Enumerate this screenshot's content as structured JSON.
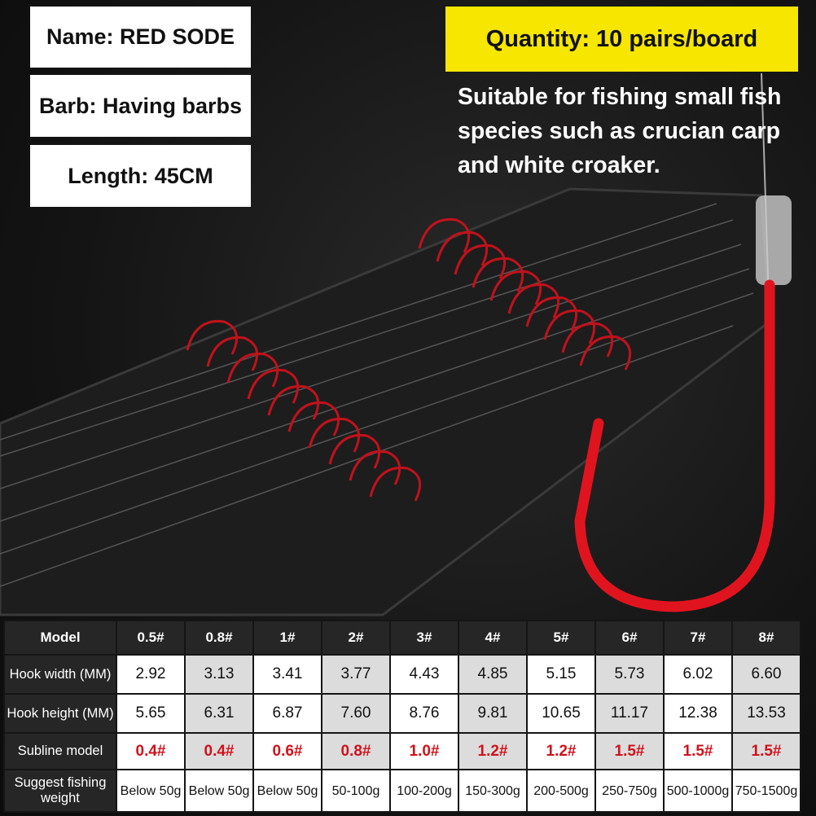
{
  "labels": {
    "name": "Name: RED SODE",
    "barb": "Barb: Having barbs",
    "length": "Length: 45CM"
  },
  "quantity": "Quantity: 10 pairs/board",
  "description": "Suitable for fishing small fish species such as crucian carp and white croaker.",
  "colors": {
    "quantity_bg": "#f6e600",
    "hook": "#d0121b",
    "background": "#141414"
  },
  "table": {
    "header": {
      "label": "Model",
      "models": [
        "0.5#",
        "0.8#",
        "1#",
        "2#",
        "3#",
        "4#",
        "5#",
        "6#",
        "7#",
        "8#"
      ]
    },
    "rows": [
      {
        "label": "Hook width (MM)",
        "values": [
          "2.92",
          "3.13",
          "3.41",
          "3.77",
          "4.43",
          "4.85",
          "5.15",
          "5.73",
          "6.02",
          "6.60"
        ]
      },
      {
        "label": "Hook height (MM)",
        "values": [
          "5.65",
          "6.31",
          "6.87",
          "7.60",
          "8.76",
          "9.81",
          "10.65",
          "11.17",
          "12.38",
          "13.53"
        ]
      },
      {
        "label": "Subline model",
        "values": [
          "0.4#",
          "0.4#",
          "0.6#",
          "0.8#",
          "1.0#",
          "1.2#",
          "1.2#",
          "1.5#",
          "1.5#",
          "1.5#"
        ]
      },
      {
        "label": "Suggest fishing weight",
        "values": [
          "Below 50g",
          "Below 50g",
          "Below 50g",
          "50-100g",
          "100-200g",
          "150-300g",
          "200-500g",
          "250-750g",
          "500-1000g",
          "750-1500g"
        ]
      }
    ]
  }
}
